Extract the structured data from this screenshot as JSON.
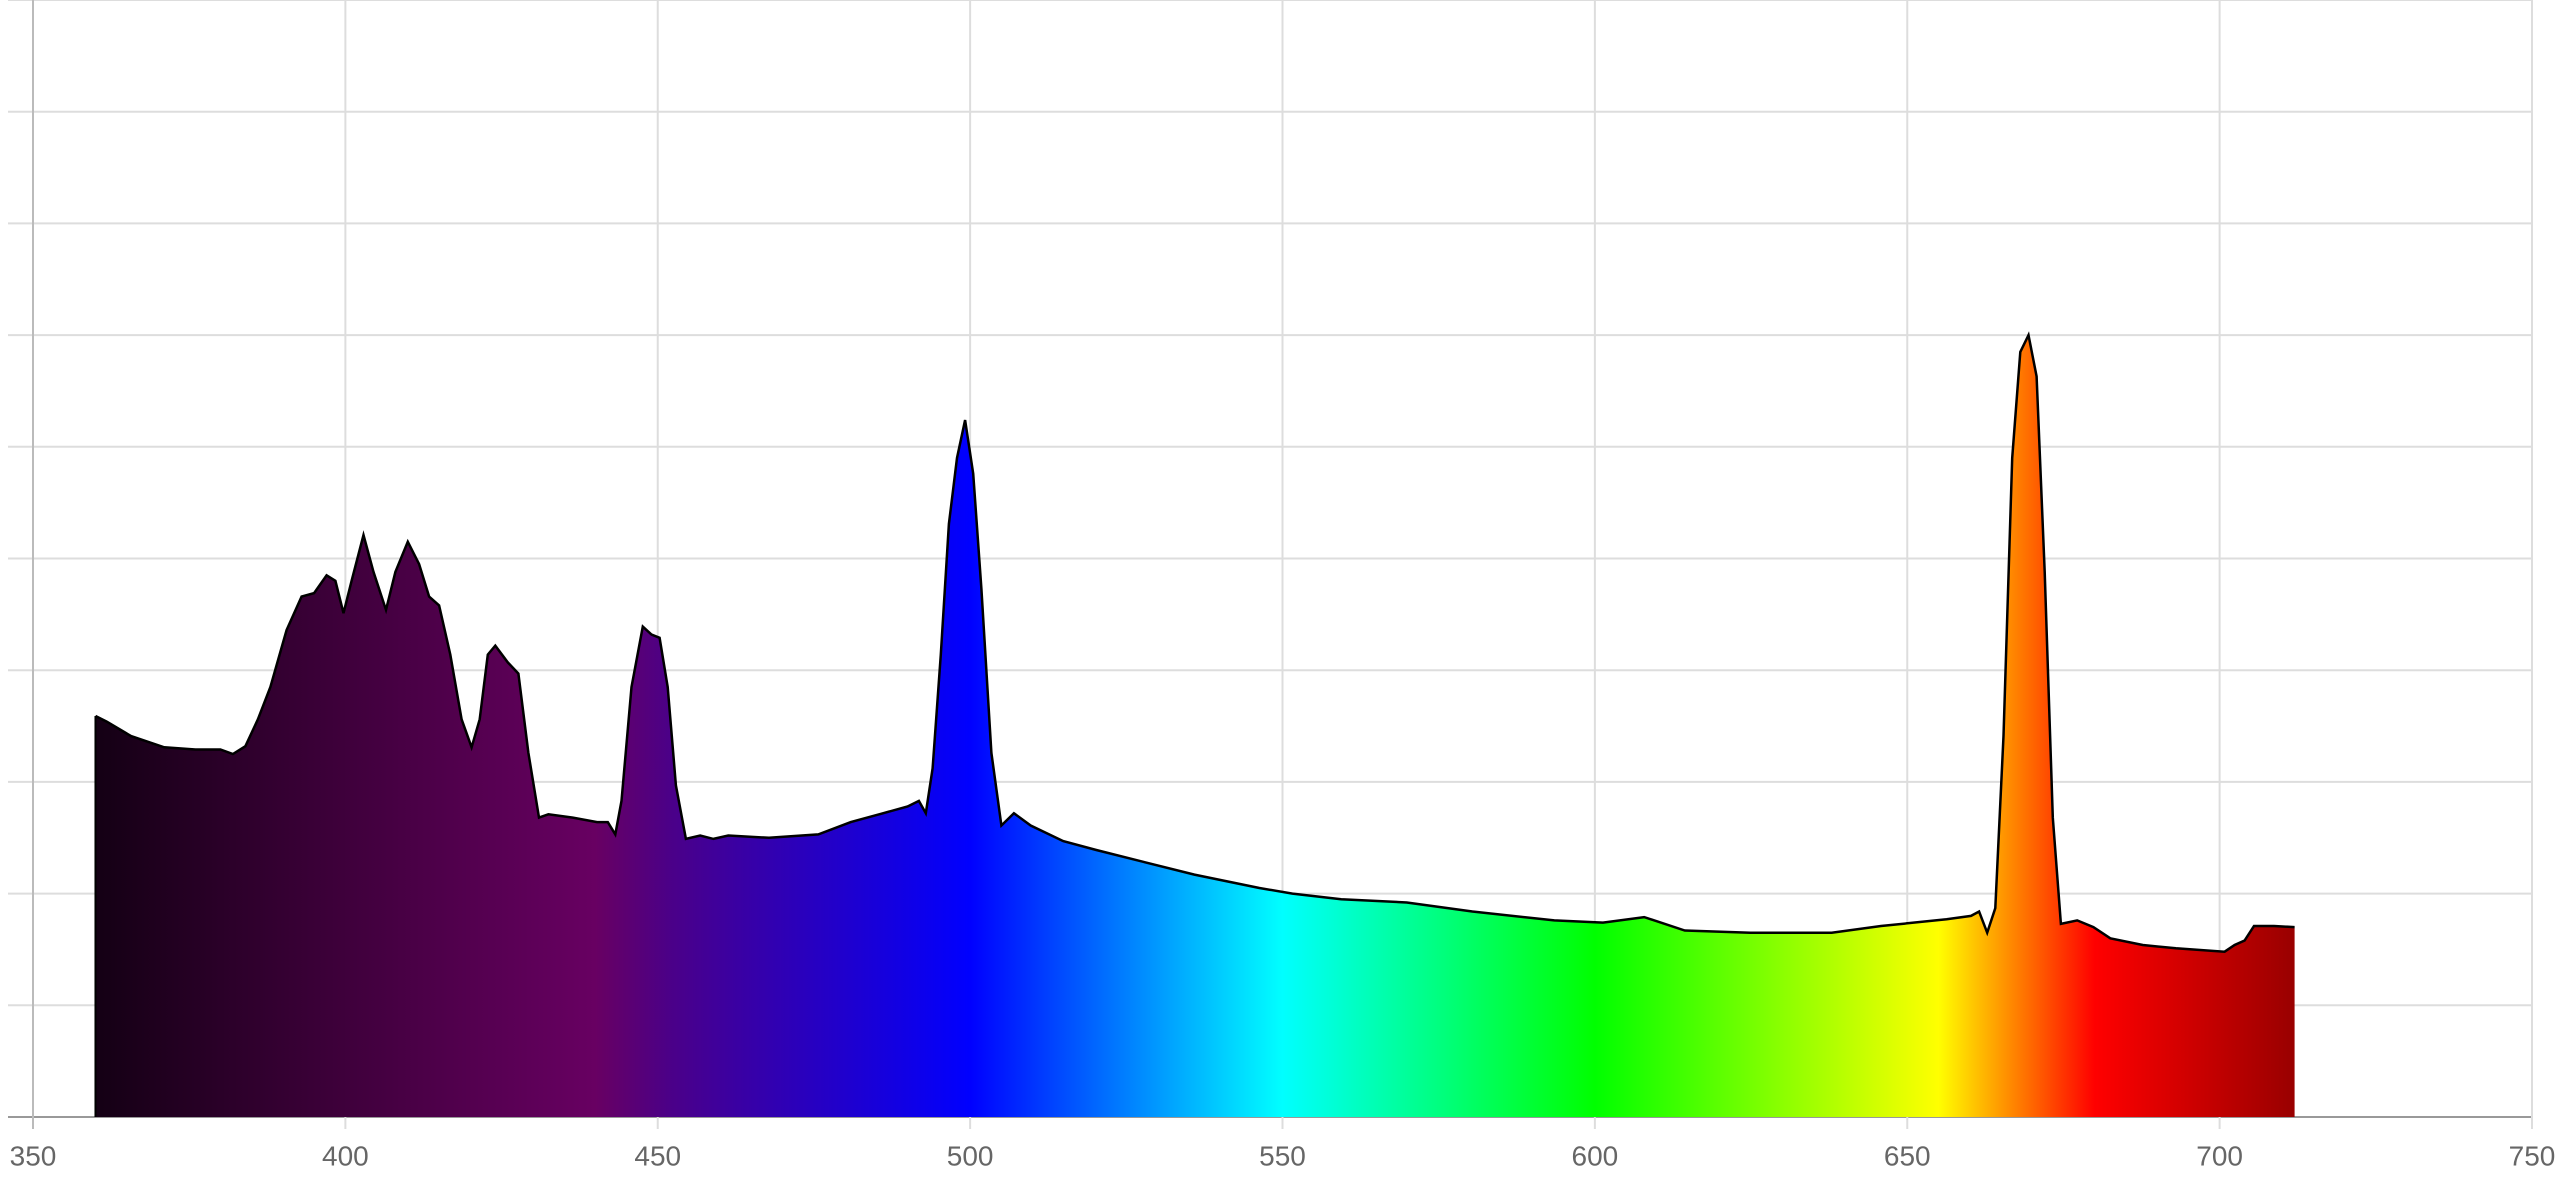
{
  "chart_data": {
    "type": "area",
    "x": [
      360,
      361.8,
      365.7,
      371,
      376,
      380,
      382,
      384,
      386,
      388,
      390.6,
      393,
      395,
      397,
      398.4,
      399.7,
      401,
      402.9,
      404.5,
      406.5,
      408,
      410,
      411.8,
      413.4,
      415,
      416.8,
      418.6,
      420.2,
      421.5,
      422.8,
      424,
      426,
      427.7,
      429.3,
      431,
      432.5,
      436.4,
      440.3,
      442,
      443.2,
      444.2,
      445.8,
      447.6,
      449,
      450.3,
      451.6,
      452.9,
      454.5,
      456.8,
      458.9,
      461.3,
      467.8,
      475.7,
      480.9,
      486.1,
      490,
      491.8,
      492.9,
      494,
      495.3,
      496.6,
      497.9,
      499.2,
      500.5,
      501.8,
      503.4,
      505,
      507,
      509.7,
      514.9,
      520.2,
      528,
      535.9,
      546.3,
      551.6,
      559.4,
      569.9,
      580.4,
      593.5,
      601.3,
      607.9,
      614.4,
      624.9,
      637.9,
      645.8,
      656.3,
      660.2,
      661.5,
      662.8,
      664.1,
      665.4,
      666.8,
      668.1,
      669.4,
      670.7,
      672,
      673.3,
      674.6,
      677.2,
      679.8,
      682.5,
      687.7,
      693,
      700.8,
      702.4,
      704,
      705.5,
      708.7,
      712
    ],
    "values": [
      3.59,
      3.54,
      3.41,
      3.31,
      3.29,
      3.29,
      3.25,
      3.32,
      3.56,
      3.85,
      4.36,
      4.66,
      4.69,
      4.85,
      4.8,
      4.51,
      4.8,
      5.21,
      4.88,
      4.54,
      4.88,
      5.15,
      4.95,
      4.66,
      4.58,
      4.14,
      3.56,
      3.31,
      3.56,
      4.14,
      4.22,
      4.07,
      3.97,
      3.26,
      2.68,
      2.71,
      2.68,
      2.64,
      2.64,
      2.53,
      2.83,
      3.85,
      4.39,
      4.32,
      4.29,
      3.85,
      2.97,
      2.49,
      2.52,
      2.49,
      2.52,
      2.5,
      2.53,
      2.64,
      2.72,
      2.78,
      2.83,
      2.72,
      3.12,
      4.14,
      5.31,
      5.9,
      6.24,
      5.76,
      4.73,
      3.26,
      2.61,
      2.72,
      2.61,
      2.47,
      2.39,
      2.28,
      2.17,
      2.05,
      2,
      1.95,
      1.92,
      1.84,
      1.76,
      1.74,
      1.79,
      1.67,
      1.65,
      1.65,
      1.71,
      1.77,
      1.8,
      1.84,
      1.65,
      1.87,
      3.41,
      5.9,
      6.85,
      7.0,
      6.63,
      4.88,
      2.68,
      1.73,
      1.76,
      1.7,
      1.6,
      1.54,
      1.51,
      1.48,
      1.54,
      1.58,
      1.71,
      1.71,
      1.7
    ],
    "fill_gradient": [
      {
        "x": 360,
        "color": "#140014"
      },
      {
        "x": 380,
        "color": "#2a0028"
      },
      {
        "x": 440,
        "color": "#680062"
      },
      {
        "x": 452,
        "color": "#4b0088"
      },
      {
        "x": 500,
        "color": "#0000ff"
      },
      {
        "x": 550,
        "color": "#00ffff"
      },
      {
        "x": 600,
        "color": "#00ff00"
      },
      {
        "x": 655,
        "color": "#ffff00"
      },
      {
        "x": 680,
        "color": "#ff0000"
      },
      {
        "x": 712,
        "color": "#990000"
      }
    ],
    "line_color": "#000000",
    "xlim": [
      350,
      750
    ],
    "xticks": [
      350,
      400,
      450,
      500,
      550,
      600,
      650,
      700,
      750
    ],
    "ylim": [
      0,
      10
    ],
    "y_gridlines": [
      0,
      1,
      2,
      3,
      4,
      5,
      6,
      7,
      8,
      9,
      10
    ],
    "grid": true
  }
}
